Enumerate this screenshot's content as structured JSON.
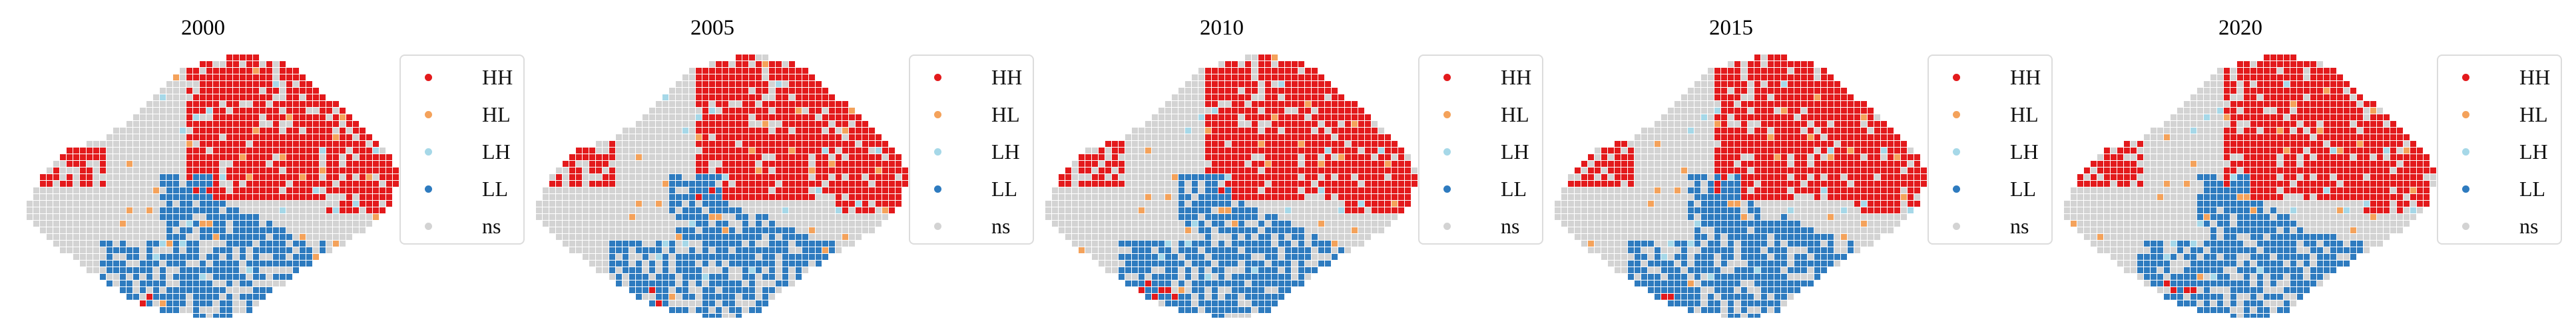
{
  "figure": {
    "panels": [
      {
        "year": "2000"
      },
      {
        "year": "2005"
      },
      {
        "year": "2010"
      },
      {
        "year": "2015"
      },
      {
        "year": "2020"
      }
    ],
    "legend": [
      {
        "key": "HH",
        "label": "HH",
        "color": "#e31a1c"
      },
      {
        "key": "HL",
        "label": "HL",
        "color": "#f4a25b"
      },
      {
        "key": "LH",
        "label": "LH",
        "color": "#a6d8e8"
      },
      {
        "key": "LL",
        "label": "LL",
        "color": "#2e7bbf"
      },
      {
        "key": "ns",
        "label": "ns",
        "color": "#d3d3d3"
      }
    ]
  }
}
